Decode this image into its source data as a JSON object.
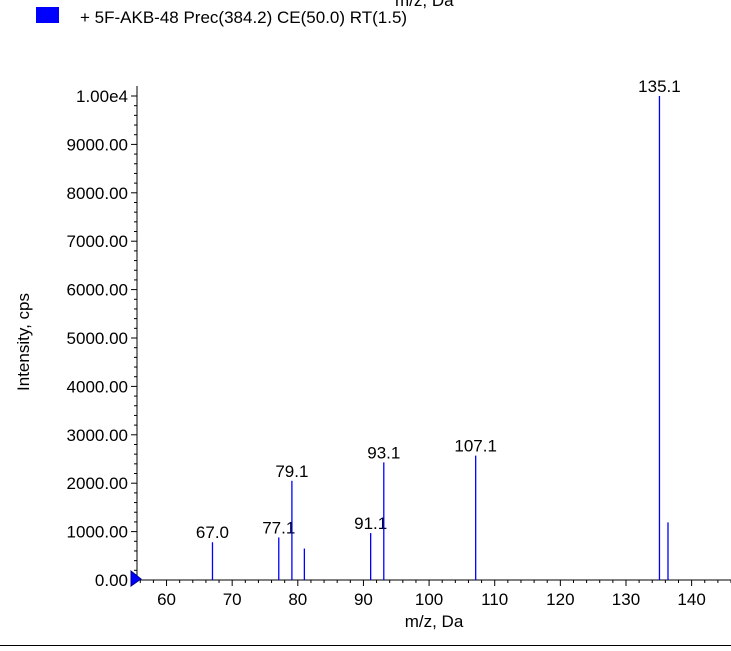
{
  "header": {
    "top_label": "m/z, Da"
  },
  "legend": {
    "label": "+ 5F-AKB-48 Prec(384.2) CE(50.0) RT(1.5)",
    "color": "#0000ff"
  },
  "chart_data": {
    "type": "bar",
    "xlabel": "m/z, Da",
    "ylabel": "Intensity, cps",
    "xlim": [
      55.5,
      146
    ],
    "ylim": [
      0,
      10000
    ],
    "x_ticks": [
      60,
      70,
      80,
      90,
      100,
      110,
      120,
      130,
      140
    ],
    "x_tick_labels": [
      "60",
      "70",
      "80",
      "90",
      "100",
      "110",
      "120",
      "130",
      "140"
    ],
    "y_ticks": [
      0,
      1000,
      2000,
      3000,
      4000,
      5000,
      6000,
      7000,
      8000,
      9000,
      10000
    ],
    "y_tick_labels": [
      "0.00",
      "1000.00",
      "2000.00",
      "3000.00",
      "4000.00",
      "5000.00",
      "6000.00",
      "7000.00",
      "8000.00",
      "9000.00",
      "1.00e4"
    ],
    "bar_color": "#0000ff",
    "series": [
      {
        "peaks": [
          {
            "x": 67.0,
            "y": 780,
            "label": "67.0"
          },
          {
            "x": 77.1,
            "y": 880,
            "label": "77.1"
          },
          {
            "x": 79.1,
            "y": 2050,
            "label": "79.1"
          },
          {
            "x": 81.0,
            "y": 650,
            "label": ""
          },
          {
            "x": 91.1,
            "y": 970,
            "label": "91.1"
          },
          {
            "x": 93.1,
            "y": 2430,
            "label": "93.1"
          },
          {
            "x": 107.1,
            "y": 2570,
            "label": "107.1"
          },
          {
            "x": 135.1,
            "y": 10000,
            "label": "135.1"
          },
          {
            "x": 136.4,
            "y": 1190,
            "label": ""
          }
        ]
      }
    ]
  }
}
